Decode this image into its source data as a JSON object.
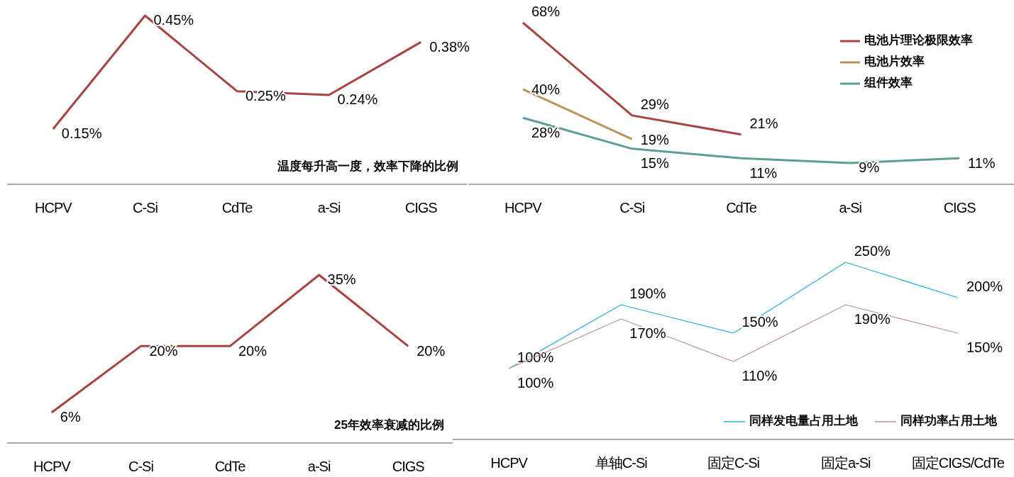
{
  "chart_data": [
    {
      "type": "line",
      "title": "温度每升高一度，效率下降的比例",
      "categories": [
        "HCPV",
        "C-Si",
        "CdTe",
        "a-Si",
        "CIGS"
      ],
      "series": [
        {
          "color": "#a84444",
          "values": [
            0.15,
            0.45,
            0.25,
            0.24,
            0.38
          ],
          "value_labels": [
            "0.15%",
            "0.45%",
            "0.25%",
            "0.24%",
            "0.38%"
          ]
        }
      ],
      "legend": false,
      "grid": false,
      "marker": "none"
    },
    {
      "type": "line",
      "categories": [
        "HCPV",
        "C-Si",
        "CdTe",
        "a-Si",
        "CIGS"
      ],
      "series": [
        {
          "name": "电池片理论极限效率",
          "color": "#a84444",
          "values": [
            68,
            29,
            21,
            null,
            null
          ],
          "value_labels": [
            "68%",
            "29%",
            "21%",
            null,
            null
          ]
        },
        {
          "name": "电池片效率",
          "color": "#b8955a",
          "values": [
            40,
            19,
            null,
            null,
            null
          ],
          "value_labels": [
            "40%",
            "19%",
            null,
            null,
            null
          ]
        },
        {
          "name": "组件效率",
          "color": "#5f9e98",
          "values": [
            28,
            15,
            11,
            9,
            11
          ],
          "value_labels": [
            "28%",
            "15%",
            "11%",
            "9%",
            "11%"
          ]
        }
      ],
      "legend": "top right",
      "grid": false,
      "marker": "none"
    },
    {
      "type": "line",
      "title": "25年效率衰减的比例",
      "categories": [
        "HCPV",
        "C-Si",
        "CdTe",
        "a-Si",
        "CIGS"
      ],
      "series": [
        {
          "color": "#a84444",
          "values": [
            6,
            20,
            20,
            35,
            20
          ],
          "value_labels": [
            "6%",
            "20%",
            "20%",
            "35%",
            "20%"
          ]
        }
      ],
      "legend": false,
      "grid": false,
      "marker": "none"
    },
    {
      "type": "line",
      "categories": [
        "HCPV",
        "单轴C-Si",
        "固定C-Si",
        "固定a-Si",
        "固定CIGS/CdTe"
      ],
      "series": [
        {
          "name": "同样发电量占用土地",
          "color": "#29abe2",
          "values": [
            100,
            190,
            150,
            250,
            200
          ],
          "value_labels": [
            "100%",
            "190%",
            "150%",
            "250%",
            "200%"
          ]
        },
        {
          "name": "同样功率占用土地",
          "color": "#c09090",
          "values": [
            100,
            170,
            110,
            190,
            150
          ],
          "value_labels": [
            "100%",
            "170%",
            "110%",
            "190%",
            "150%"
          ]
        }
      ],
      "legend": "bottom right",
      "grid": false,
      "marker": "none"
    }
  ]
}
